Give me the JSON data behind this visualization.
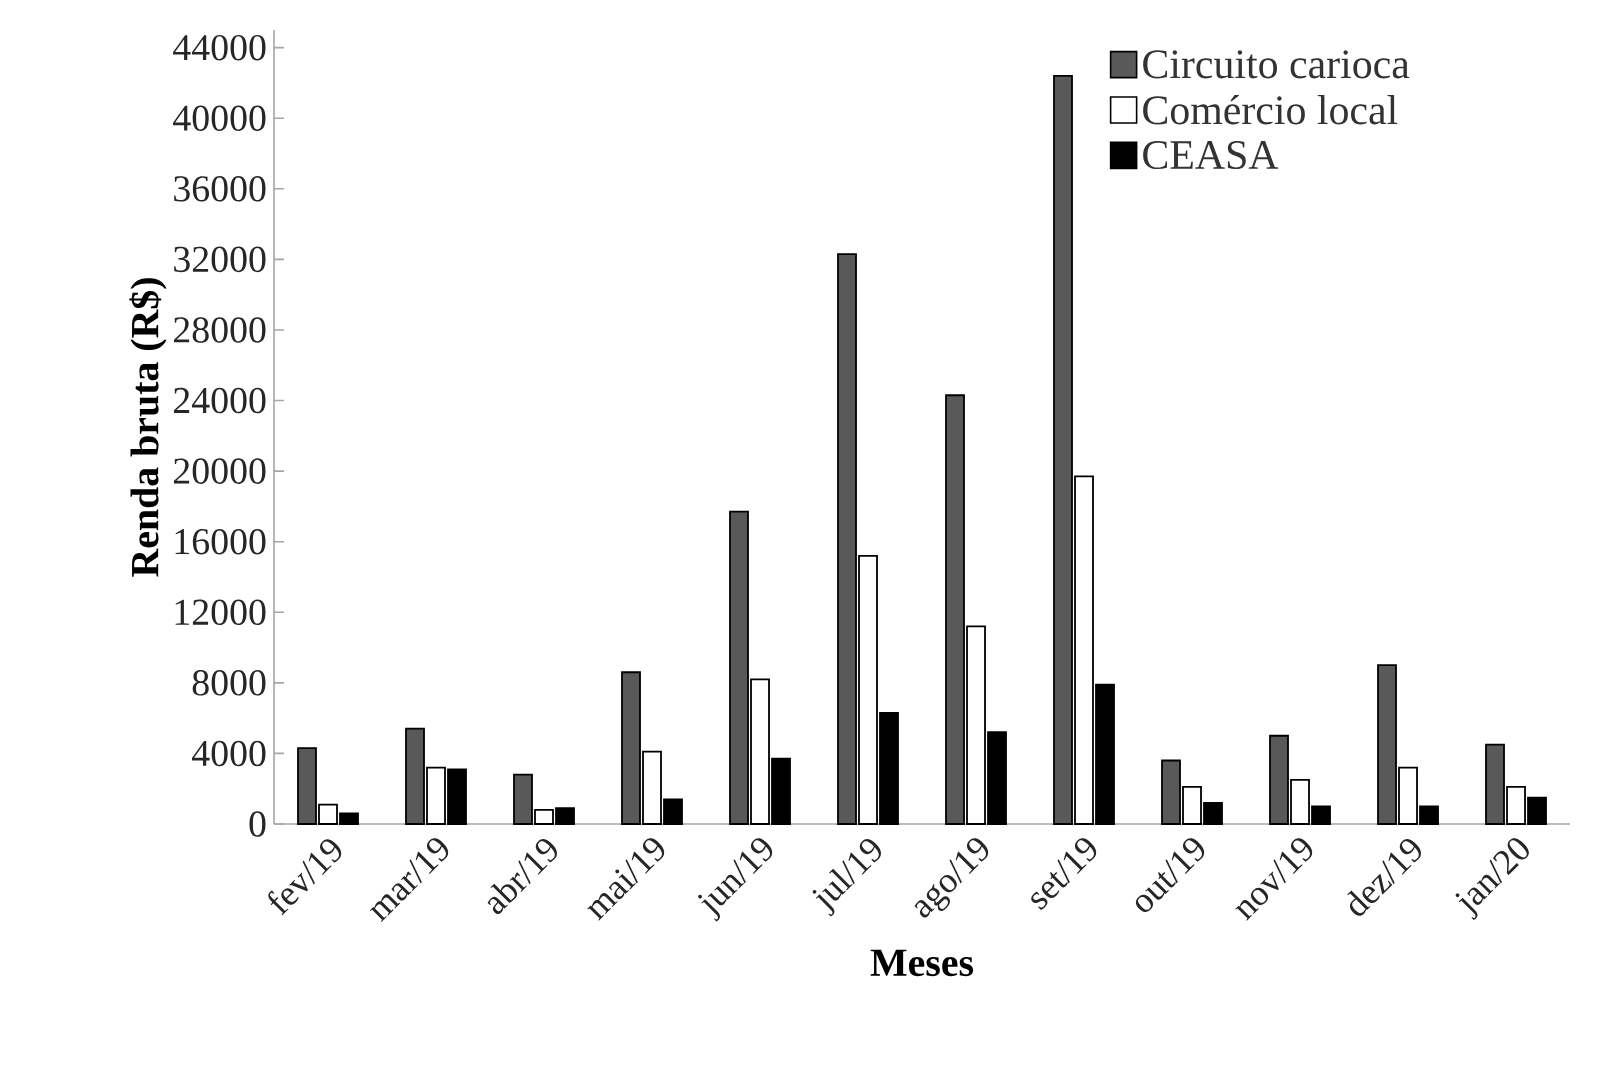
{
  "chart_data": {
    "type": "bar",
    "xlabel": "Meses",
    "ylabel": "Renda bruta (R$)",
    "categories": [
      "fev/19",
      "mar/19",
      "abr/19",
      "mai/19",
      "jun/19",
      "jul/19",
      "ago/19",
      "set/19",
      "out/19",
      "nov/19",
      "dez/19",
      "jan/20"
    ],
    "series": [
      {
        "name": "Circuito carioca",
        "color": "#595959",
        "values": [
          4300,
          5400,
          2800,
          8600,
          17700,
          32300,
          24300,
          42400,
          3600,
          5000,
          9000,
          4500
        ]
      },
      {
        "name": "Comércio local",
        "color": "#ffffff",
        "values": [
          1100,
          3200,
          800,
          4100,
          8200,
          15200,
          11200,
          19700,
          2100,
          2500,
          3200,
          2100
        ]
      },
      {
        "name": "CEASA",
        "color": "#000000",
        "values": [
          600,
          3100,
          900,
          1400,
          3700,
          6300,
          5200,
          7900,
          1200,
          1000,
          1000,
          1500
        ]
      }
    ],
    "ylim": [
      0,
      45000
    ],
    "yticks": [
      0,
      4000,
      8000,
      12000,
      16000,
      20000,
      24000,
      28000,
      32000,
      36000,
      40000,
      44000
    ],
    "legend": "top right"
  }
}
